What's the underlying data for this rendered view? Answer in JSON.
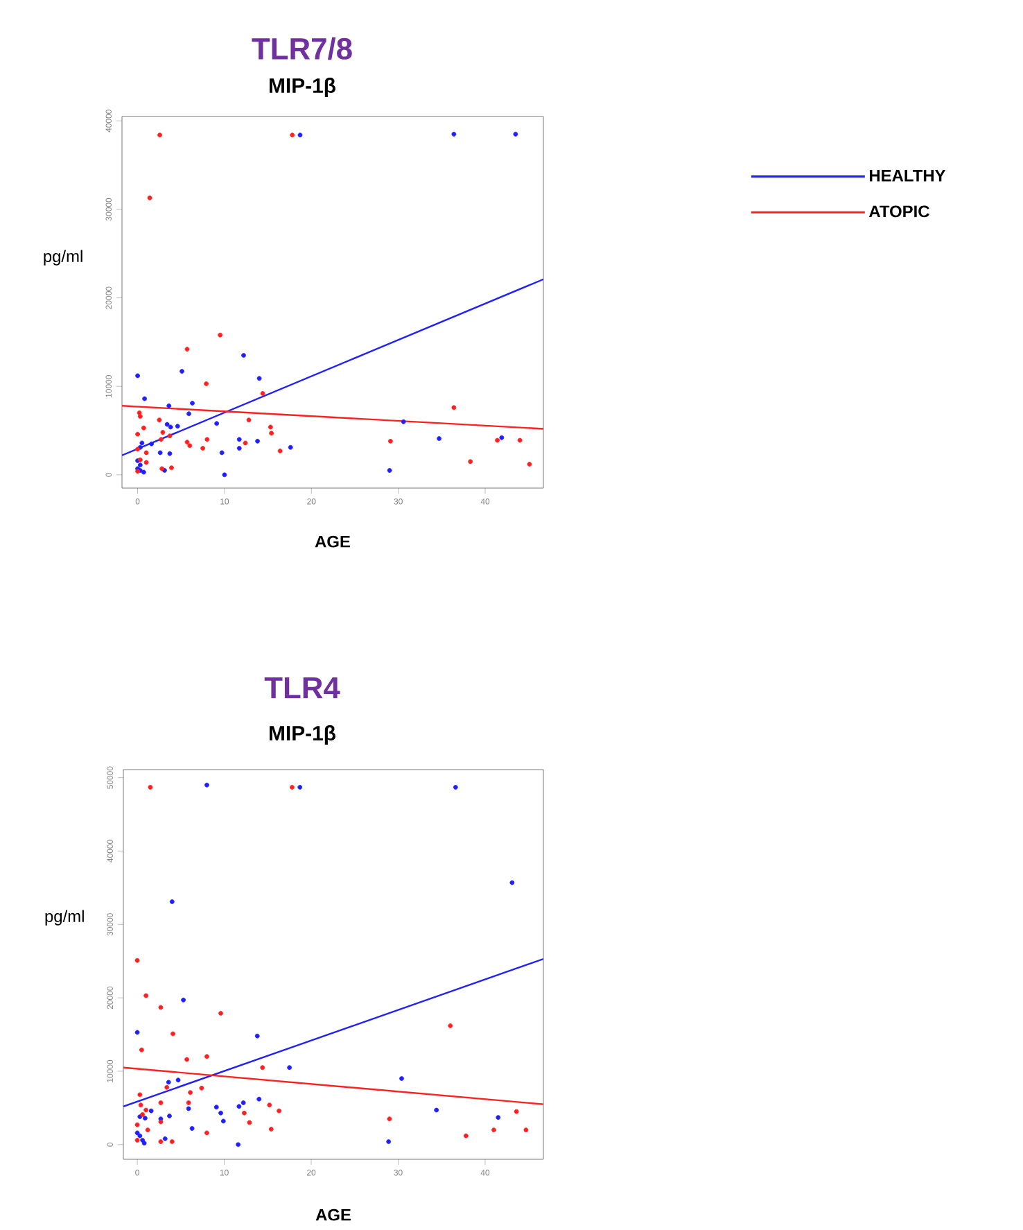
{
  "chart_data": [
    {
      "type": "scatter",
      "title": "TLR7/8",
      "subtitle": "MIP-1β",
      "xlabel": "AGE",
      "ylabel": "pg/ml",
      "xlim": [
        -1.8,
        46.7
      ],
      "ylim": [
        -1500,
        40500
      ],
      "xticks": [
        0,
        10,
        20,
        30,
        40
      ],
      "yticks": [
        0,
        10000,
        20000,
        30000,
        40000
      ],
      "legend": "right",
      "grid": false,
      "series": [
        {
          "marker": "circle",
          "color": "#2020ff",
          "x": [
            18.7,
            36.4,
            43.5,
            0,
            0.8,
            3.6,
            6.3,
            5.1,
            12.2,
            14.0,
            5.9,
            3.4,
            4.6,
            3.8,
            9.1,
            0.5,
            1.6,
            0.3,
            11.7,
            13.8,
            2.6,
            3.7,
            9.7,
            11.7,
            17.6,
            0,
            0.3,
            0,
            0.3,
            0.7,
            3.1,
            10,
            29.0,
            30.6,
            34.7,
            41.9
          ],
          "values": [
            38400,
            38500,
            38500,
            11200,
            8600,
            7800,
            8100,
            11700,
            13500,
            10900,
            6900,
            5700,
            5500,
            5400,
            5800,
            3600,
            3500,
            3100,
            4000,
            3800,
            2500,
            2400,
            2500,
            3000,
            3100,
            1600,
            1100,
            700,
            500,
            300,
            500,
            0,
            500,
            6000,
            4100,
            4200
          ]
        },
        {
          "marker": "circle",
          "color": "#ff2020",
          "x": [
            2.55,
            17.8,
            1.4,
            9.5,
            5.7,
            7.9,
            14.4,
            0.2,
            0.3,
            0.7,
            2.5,
            12.8,
            0,
            2.9,
            3.7,
            15.3,
            15.4,
            2.7,
            5.7,
            6.0,
            8.0,
            7.5,
            12.4,
            16.4,
            0,
            1.0,
            0.3,
            1.0,
            2.8,
            3.9,
            0,
            29.1,
            36.4,
            41.4,
            44.0,
            38.3,
            45.1
          ],
          "values": [
            38400,
            38400,
            31300,
            15800,
            14200,
            10300,
            9200,
            7000,
            6600,
            5300,
            6200,
            6200,
            4600,
            4800,
            4400,
            5400,
            4700,
            4000,
            3700,
            3300,
            4000,
            3000,
            3600,
            2700,
            2900,
            2500,
            1700,
            1400,
            700,
            800,
            400,
            3800,
            7600,
            3900,
            3900,
            1500,
            1200
          ]
        },
        {
          "type": "line",
          "marker": "none",
          "name": "HEALTHY",
          "color": "#2020ff",
          "x": [
            -1.8,
            46.7
          ],
          "values": [
            2200,
            22100
          ]
        },
        {
          "type": "line",
          "marker": "none",
          "name": "ATOPIC",
          "color": "#ff2020",
          "x": [
            -1.8,
            46.7
          ],
          "values": [
            7800,
            5200
          ]
        }
      ]
    },
    {
      "type": "scatter",
      "title": "TLR4",
      "subtitle": "MIP-1β",
      "xlabel": "AGE",
      "ylabel": "pg/ml",
      "xlim": [
        -1.6,
        46.7
      ],
      "ylim": [
        -2000,
        51100
      ],
      "xticks": [
        0,
        10,
        20,
        30,
        40
      ],
      "yticks": [
        0,
        10000,
        20000,
        30000,
        40000,
        50000
      ],
      "grid": false,
      "series": [
        {
          "marker": "circle",
          "color": "#2020ff",
          "x": [
            8.0,
            18.7,
            36.6,
            43.1,
            4.0,
            5.3,
            0,
            13.8,
            17.5,
            3.6,
            4.7,
            1.6,
            0.9,
            0.3,
            3.7,
            5.9,
            2.7,
            9.1,
            9.6,
            9.9,
            11.7,
            12.2,
            14.0,
            6.3,
            0,
            0.3,
            0.6,
            0.8,
            3.2,
            11.6,
            28.9,
            30.4,
            34.4,
            41.5
          ],
          "values": [
            49000,
            48700,
            48700,
            35700,
            33100,
            19700,
            15300,
            14800,
            10500,
            8500,
            8800,
            4600,
            3600,
            3800,
            3900,
            4900,
            3500,
            5100,
            4300,
            3200,
            5200,
            5700,
            6200,
            2200,
            1600,
            1200,
            600,
            200,
            800,
            0,
            400,
            9000,
            4700,
            3700
          ]
        },
        {
          "marker": "circle",
          "color": "#ff2020",
          "x": [
            1.5,
            17.8,
            0,
            1.0,
            2.7,
            9.6,
            4.1,
            0.5,
            5.7,
            8.0,
            14.4,
            7.4,
            3.4,
            0.3,
            6.1,
            0.4,
            5.9,
            2.7,
            15.2,
            16.3,
            1.0,
            0.6,
            2.7,
            12.3,
            12.9,
            1.2,
            15.4,
            8.0,
            0,
            0,
            2.7,
            4.0,
            29.0,
            36.0,
            43.6,
            41.0,
            44.7,
            37.8
          ],
          "values": [
            48700,
            48700,
            25100,
            20300,
            18700,
            17900,
            15100,
            12900,
            11600,
            12000,
            10500,
            7700,
            7800,
            6800,
            7100,
            5400,
            5700,
            5700,
            5400,
            4600,
            4700,
            4100,
            3100,
            4300,
            3000,
            2000,
            2100,
            1600,
            2700,
            600,
            400,
            400,
            3500,
            16200,
            4500,
            2000,
            2000,
            1200
          ]
        },
        {
          "type": "line",
          "marker": "none",
          "color": "#2020ff",
          "x": [
            -1.6,
            46.7
          ],
          "values": [
            5200,
            25300
          ]
        },
        {
          "type": "line",
          "marker": "none",
          "color": "#ff2020",
          "x": [
            -1.6,
            46.7
          ],
          "values": [
            10500,
            5500
          ]
        }
      ]
    }
  ]
}
